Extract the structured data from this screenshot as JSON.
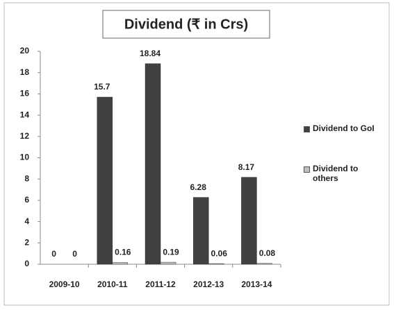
{
  "chart_data": {
    "type": "bar",
    "title": "Dividend (₹ in Crs)",
    "categories": [
      "2009-10",
      "2010-11",
      "2011-12",
      "2012-13",
      "2013-14"
    ],
    "series": [
      {
        "name": "Dividend to GoI",
        "color": "#404040",
        "values": [
          0,
          15.7,
          18.84,
          6.28,
          8.17
        ]
      },
      {
        "name": "Dividend to others",
        "color": "#bfbfbf",
        "values": [
          0,
          0.16,
          0.19,
          0.06,
          0.08
        ]
      }
    ],
    "ylim": [
      0,
      20
    ],
    "yticks": [
      0,
      2,
      4,
      6,
      8,
      10,
      12,
      14,
      16,
      18,
      20
    ],
    "grid": false,
    "legend": "right"
  }
}
